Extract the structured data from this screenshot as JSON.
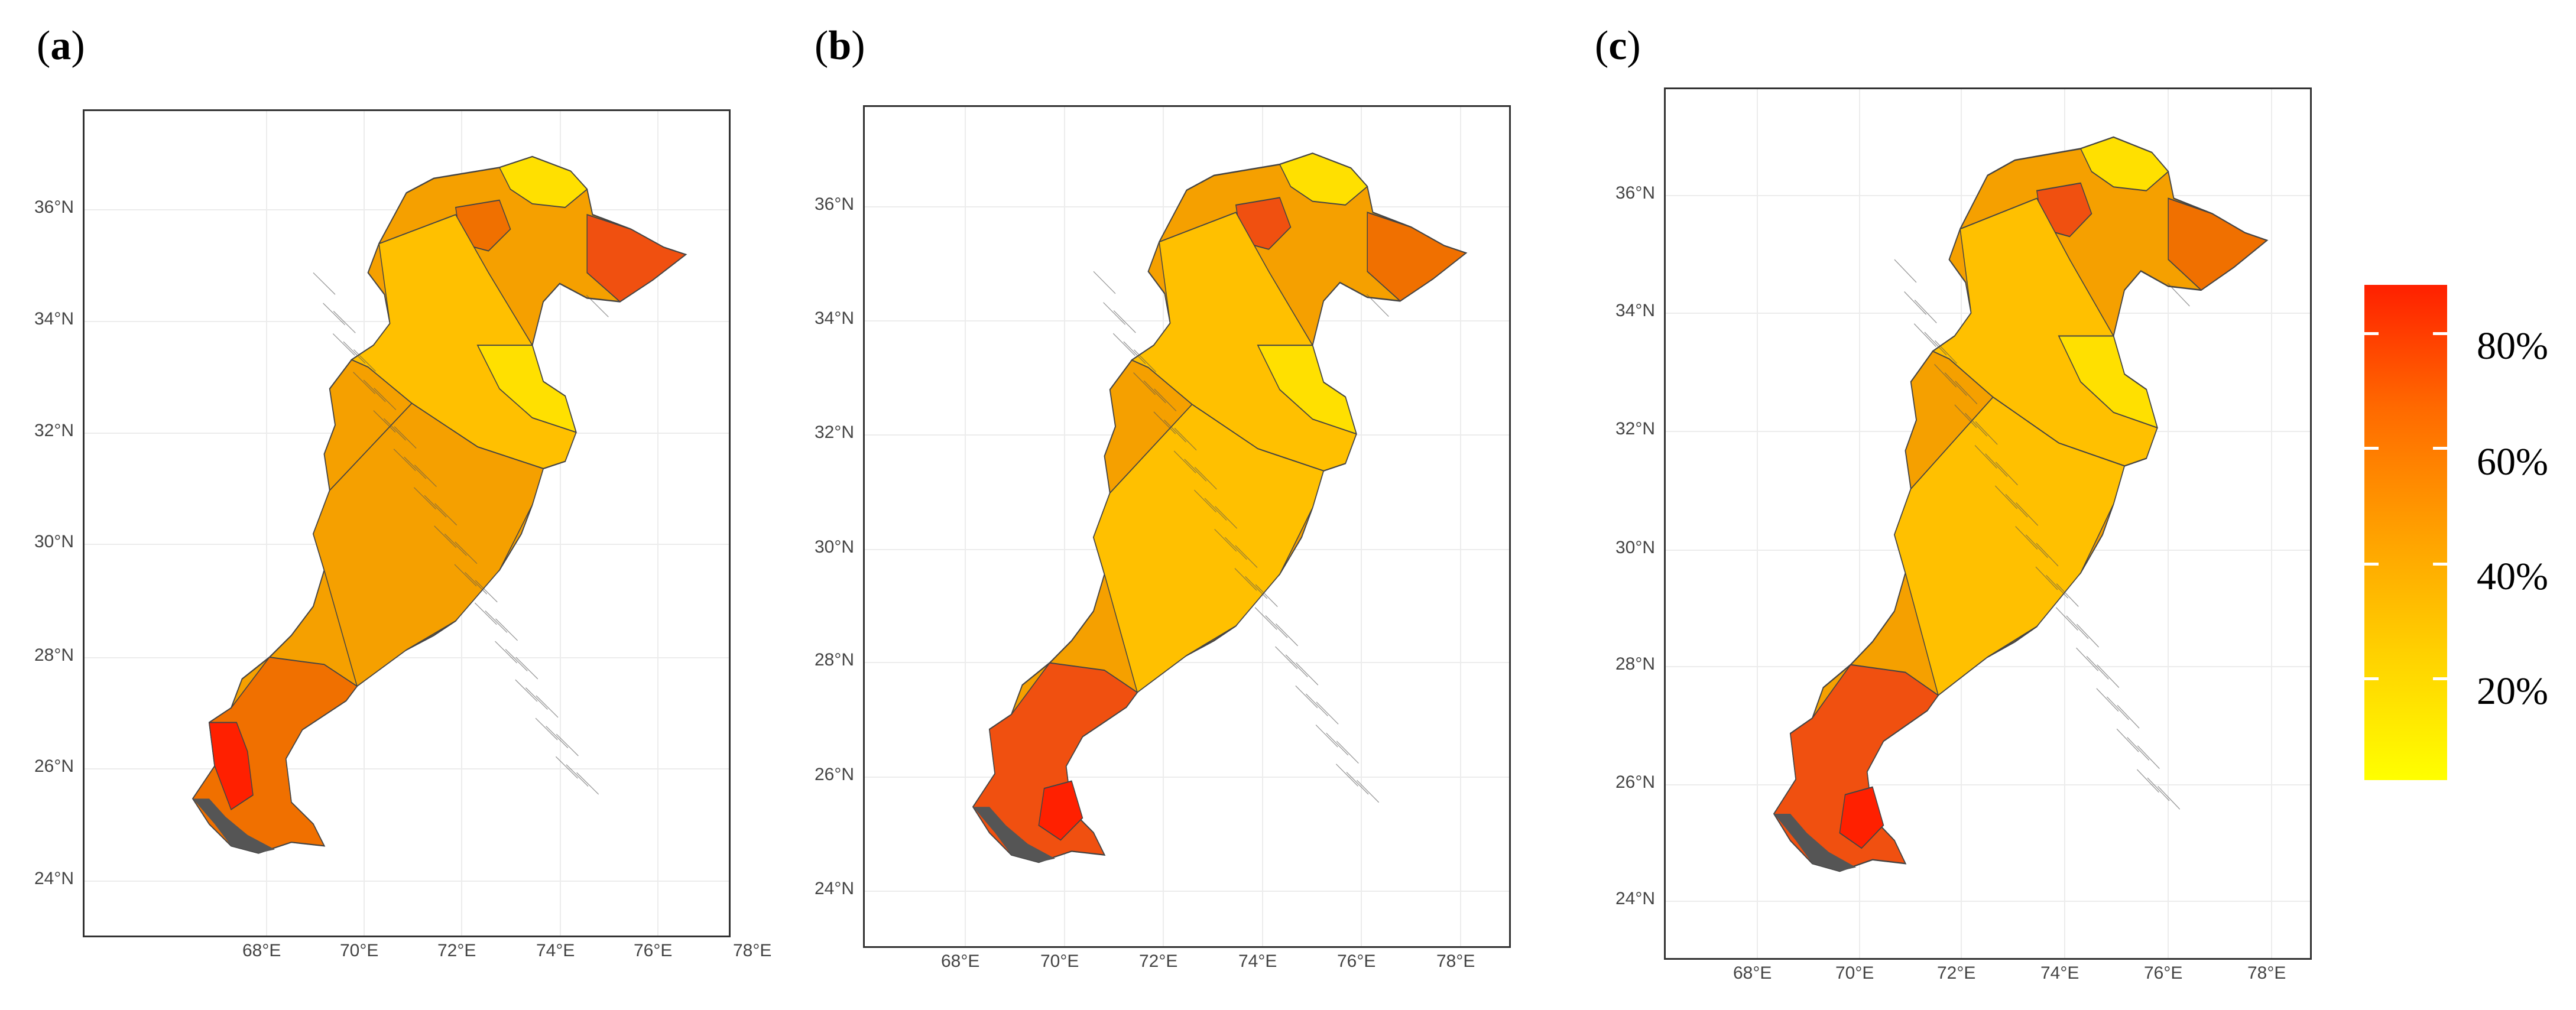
{
  "panels": [
    {
      "label": "a",
      "paren_open": "(",
      "paren_close": ")"
    },
    {
      "label": "b",
      "paren_open": "(",
      "paren_close": ")"
    },
    {
      "label": "c",
      "paren_open": "(",
      "paren_close": ")"
    }
  ],
  "axes": {
    "lat_ticks": [
      "36°N",
      "34°N",
      "32°N",
      "30°N",
      "28°N",
      "26°N",
      "24°N"
    ],
    "lon_ticks": [
      "68°E",
      "70°E",
      "72°E",
      "74°E",
      "76°E",
      "78°E"
    ]
  },
  "legend": {
    "labels": [
      "80%",
      "60%",
      "40%",
      "20%"
    ],
    "colors": {
      "low": "#ffff00",
      "mid": "#ffa000",
      "high": "#ff2000"
    }
  },
  "colors": {
    "yellow": "#ffe000",
    "light_orange": "#ffc000",
    "orange": "#f5a000",
    "dark_orange": "#f07000",
    "red_orange": "#f05010",
    "red": "#ff2000",
    "coast": "#555555"
  }
}
